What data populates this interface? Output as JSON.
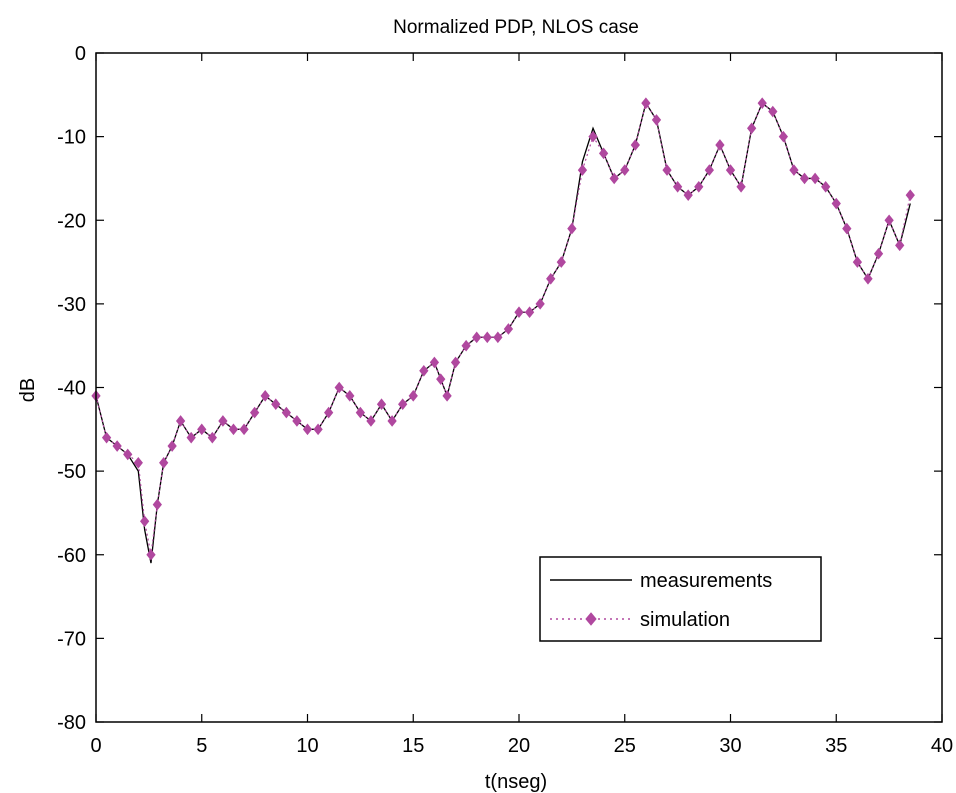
{
  "chart_data": {
    "type": "line",
    "title": "Normalized PDP, NLOS case",
    "xlabel": "t(nseg)",
    "ylabel": "dB",
    "xlim": [
      0,
      40
    ],
    "ylim": [
      -80,
      0
    ],
    "x_ticks": [
      0,
      5,
      10,
      15,
      20,
      25,
      30,
      35,
      40
    ],
    "y_ticks": [
      0,
      -10,
      -20,
      -30,
      -40,
      -50,
      -60,
      -70,
      -80
    ],
    "x_tick_labels": [
      "0",
      "5",
      "10",
      "15",
      "20",
      "25",
      "30",
      "35",
      "40"
    ],
    "y_tick_labels": [
      "0",
      "-10",
      "-20",
      "-30",
      "-40",
      "-50",
      "-60",
      "-70",
      "-80"
    ],
    "grid": false,
    "legend_position": "bottom-right",
    "series": [
      {
        "name": "measurements",
        "color": "#000000",
        "style": "solid",
        "x": [
          0.0,
          0.5,
          1.0,
          1.5,
          2.0,
          2.3,
          2.6,
          2.9,
          3.2,
          3.6,
          4.0,
          4.5,
          5.0,
          5.5,
          6.0,
          6.5,
          7.0,
          7.5,
          8.0,
          8.5,
          9.0,
          9.5,
          10.0,
          10.5,
          11.0,
          11.5,
          12.0,
          12.5,
          13.0,
          13.5,
          14.0,
          14.5,
          15.0,
          15.5,
          16.0,
          16.3,
          16.6,
          17.0,
          17.5,
          18.0,
          18.5,
          19.0,
          19.5,
          20.0,
          20.5,
          21.0,
          21.5,
          22.0,
          22.5,
          23.0,
          23.5,
          24.0,
          24.5,
          25.0,
          25.5,
          26.0,
          26.5,
          27.0,
          27.5,
          28.0,
          28.5,
          29.0,
          29.5,
          30.0,
          30.5,
          31.0,
          31.5,
          32.0,
          32.5,
          33.0,
          33.5,
          34.0,
          34.5,
          35.0,
          35.5,
          36.0,
          36.5,
          37.0,
          37.5,
          38.0,
          38.5
        ],
        "values": [
          -41,
          -46,
          -47,
          -48,
          -50,
          -57,
          -61,
          -54,
          -49,
          -47,
          -44,
          -46,
          -45,
          -46,
          -44,
          -45,
          -45,
          -43,
          -41,
          -42,
          -43,
          -44,
          -45,
          -45,
          -43,
          -40,
          -41,
          -43,
          -44,
          -42,
          -44,
          -42,
          -41,
          -38,
          -37,
          -39,
          -41,
          -37,
          -35,
          -34,
          -34,
          -34,
          -33,
          -31,
          -31,
          -30,
          -27,
          -25,
          -21,
          -13,
          -9,
          -12,
          -15,
          -14,
          -11,
          -6,
          -8,
          -14,
          -16,
          -17,
          -16,
          -14,
          -11,
          -14,
          -16,
          -9,
          -6,
          -7,
          -10,
          -14,
          -15,
          -15,
          -16,
          -18,
          -21,
          -25,
          -27,
          -24,
          -20,
          -23,
          -18
        ]
      },
      {
        "name": "simulation",
        "color": "#b0489f",
        "style": "dotted-diamond",
        "x": [
          0.0,
          0.5,
          1.0,
          1.5,
          2.0,
          2.3,
          2.6,
          2.9,
          3.2,
          3.6,
          4.0,
          4.5,
          5.0,
          5.5,
          6.0,
          6.5,
          7.0,
          7.5,
          8.0,
          8.5,
          9.0,
          9.5,
          10.0,
          10.5,
          11.0,
          11.5,
          12.0,
          12.5,
          13.0,
          13.5,
          14.0,
          14.5,
          15.0,
          15.5,
          16.0,
          16.3,
          16.6,
          17.0,
          17.5,
          18.0,
          18.5,
          19.0,
          19.5,
          20.0,
          20.5,
          21.0,
          21.5,
          22.0,
          22.5,
          23.0,
          23.5,
          24.0,
          24.5,
          25.0,
          25.5,
          26.0,
          26.5,
          27.0,
          27.5,
          28.0,
          28.5,
          29.0,
          29.5,
          30.0,
          30.5,
          31.0,
          31.5,
          32.0,
          32.5,
          33.0,
          33.5,
          34.0,
          34.5,
          35.0,
          35.5,
          36.0,
          36.5,
          37.0,
          37.5,
          38.0,
          38.5
        ],
        "values": [
          -41,
          -46,
          -47,
          -48,
          -49,
          -56,
          -60,
          -54,
          -49,
          -47,
          -44,
          -46,
          -45,
          -46,
          -44,
          -45,
          -45,
          -43,
          -41,
          -42,
          -43,
          -44,
          -45,
          -45,
          -43,
          -40,
          -41,
          -43,
          -44,
          -42,
          -44,
          -42,
          -41,
          -38,
          -37,
          -39,
          -41,
          -37,
          -35,
          -34,
          -34,
          -34,
          -33,
          -31,
          -31,
          -30,
          -27,
          -25,
          -21,
          -14,
          -10,
          -12,
          -15,
          -14,
          -11,
          -6,
          -8,
          -14,
          -16,
          -17,
          -16,
          -14,
          -11,
          -14,
          -16,
          -9,
          -6,
          -7,
          -10,
          -14,
          -15,
          -15,
          -16,
          -18,
          -21,
          -25,
          -27,
          -24,
          -20,
          -23,
          -17
        ]
      }
    ]
  }
}
